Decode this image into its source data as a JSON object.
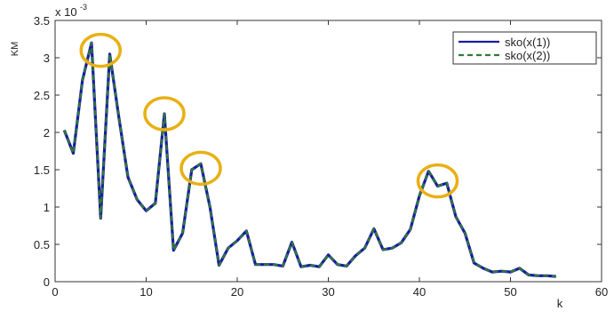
{
  "chart_data": {
    "type": "line",
    "title": "",
    "xlabel": "k",
    "ylabel": "KM",
    "y_scale_label": "x 10",
    "y_scale_exponent": "-3",
    "xlim": [
      0,
      60
    ],
    "ylim": [
      0,
      3.5
    ],
    "x_ticks": [
      0,
      10,
      20,
      30,
      40,
      50,
      60
    ],
    "y_ticks": [
      0,
      0.5,
      1,
      1.5,
      2,
      2.5,
      3,
      3.5
    ],
    "x_tick_labels": [
      "0",
      "10",
      "20",
      "30",
      "40",
      "50",
      "60"
    ],
    "y_tick_labels": [
      "0",
      "0.5",
      "1",
      "1.5",
      "2",
      "2.5",
      "3",
      "3.5"
    ],
    "grid": false,
    "legend_position": "top-right",
    "x": [
      1,
      2,
      3,
      4,
      5,
      6,
      7,
      8,
      9,
      10,
      11,
      12,
      13,
      14,
      15,
      16,
      17,
      18,
      19,
      20,
      21,
      22,
      23,
      24,
      25,
      26,
      27,
      28,
      29,
      30,
      31,
      32,
      33,
      34,
      35,
      36,
      37,
      38,
      39,
      40,
      41,
      42,
      43,
      44,
      45,
      46,
      47,
      48,
      49,
      50,
      51,
      52,
      53,
      54,
      55
    ],
    "series": [
      {
        "name": "sko(x(1))",
        "color": "#1a1aa6",
        "style": "solid",
        "values": [
          2.03,
          1.72,
          2.7,
          3.2,
          0.85,
          3.05,
          2.2,
          1.4,
          1.1,
          0.95,
          1.05,
          2.25,
          0.42,
          0.65,
          1.5,
          1.58,
          1.0,
          0.22,
          0.45,
          0.55,
          0.68,
          0.23,
          0.23,
          0.23,
          0.21,
          0.53,
          0.2,
          0.22,
          0.2,
          0.36,
          0.23,
          0.21,
          0.35,
          0.45,
          0.71,
          0.43,
          0.45,
          0.52,
          0.7,
          1.15,
          1.48,
          1.28,
          1.32,
          0.87,
          0.65,
          0.25,
          0.18,
          0.13,
          0.14,
          0.13,
          0.18,
          0.09,
          0.08,
          0.08,
          0.07
        ]
      },
      {
        "name": "sko(x(2))",
        "color": "#2e7d32",
        "style": "dashed",
        "values": [
          2.03,
          1.72,
          2.7,
          3.2,
          0.85,
          3.05,
          2.2,
          1.4,
          1.1,
          0.95,
          1.05,
          2.25,
          0.42,
          0.65,
          1.5,
          1.58,
          1.0,
          0.22,
          0.45,
          0.55,
          0.68,
          0.23,
          0.23,
          0.23,
          0.21,
          0.53,
          0.2,
          0.22,
          0.2,
          0.36,
          0.23,
          0.21,
          0.35,
          0.45,
          0.71,
          0.43,
          0.45,
          0.52,
          0.7,
          1.15,
          1.48,
          1.28,
          1.32,
          0.87,
          0.65,
          0.25,
          0.18,
          0.13,
          0.14,
          0.13,
          0.18,
          0.09,
          0.08,
          0.08,
          0.07
        ]
      }
    ],
    "annotations": [
      {
        "type": "circle",
        "x": 5,
        "y": 3.1,
        "color": "#e8b014"
      },
      {
        "type": "circle",
        "x": 12,
        "y": 2.25,
        "color": "#e8b014"
      },
      {
        "type": "circle",
        "x": 16,
        "y": 1.52,
        "color": "#e8b014"
      },
      {
        "type": "circle",
        "x": 42,
        "y": 1.35,
        "color": "#e8b014"
      }
    ]
  }
}
